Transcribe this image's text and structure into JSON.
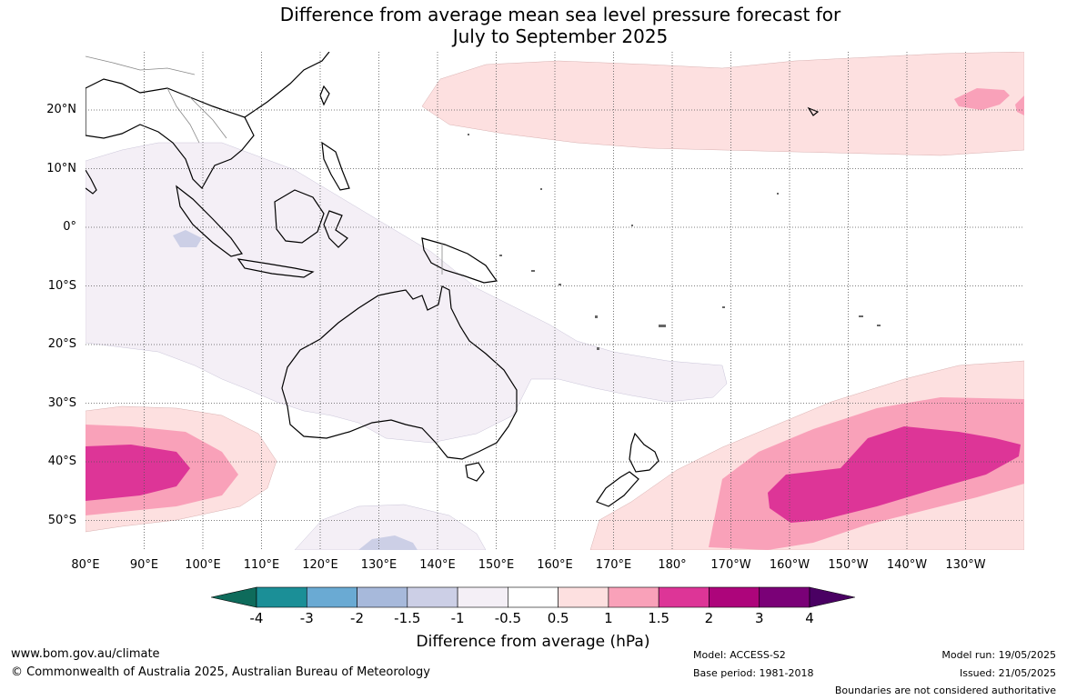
{
  "title_line1": "Difference from average mean sea level pressure forecast for",
  "title_line2": "July to September 2025",
  "lat_labels": [
    "20°N",
    "10°N",
    "0°",
    "10°S",
    "20°S",
    "30°S",
    "40°S",
    "50°S"
  ],
  "lon_labels": [
    "80°E",
    "90°E",
    "100°E",
    "110°E",
    "120°E",
    "130°E",
    "140°E",
    "150°E",
    "160°E",
    "170°E",
    "180°",
    "170°W",
    "160°W",
    "150°W",
    "140°W",
    "130°W"
  ],
  "colorbar": {
    "label": "Difference from average (hPa)",
    "ticks": [
      "-4",
      "-3",
      "-2",
      "-1.5",
      "-1",
      "-0.5",
      "0.5",
      "1",
      "1.5",
      "2",
      "3",
      "4"
    ],
    "colors": [
      "#0e6b5b",
      "#1b8f97",
      "#6aaad3",
      "#a7b9db",
      "#cccfe6",
      "#f4eff6",
      "#ffffff",
      "#fde0e0",
      "#f9a1b9",
      "#dd3597",
      "#ad057b",
      "#7a0177",
      "#4a0063"
    ]
  },
  "footer": {
    "website": "www.bom.gov.au/climate",
    "copyright": "© Commonwealth of Australia 2025, Australian Bureau of Meteorology",
    "model": "Model: ACCESS-S2",
    "base_period": "Base period: 1981-2018",
    "model_run": "Model run: 19/05/2025",
    "issued": "Issued: 21/05/2025",
    "disclaimer": "Boundaries are not considered authoritative"
  }
}
